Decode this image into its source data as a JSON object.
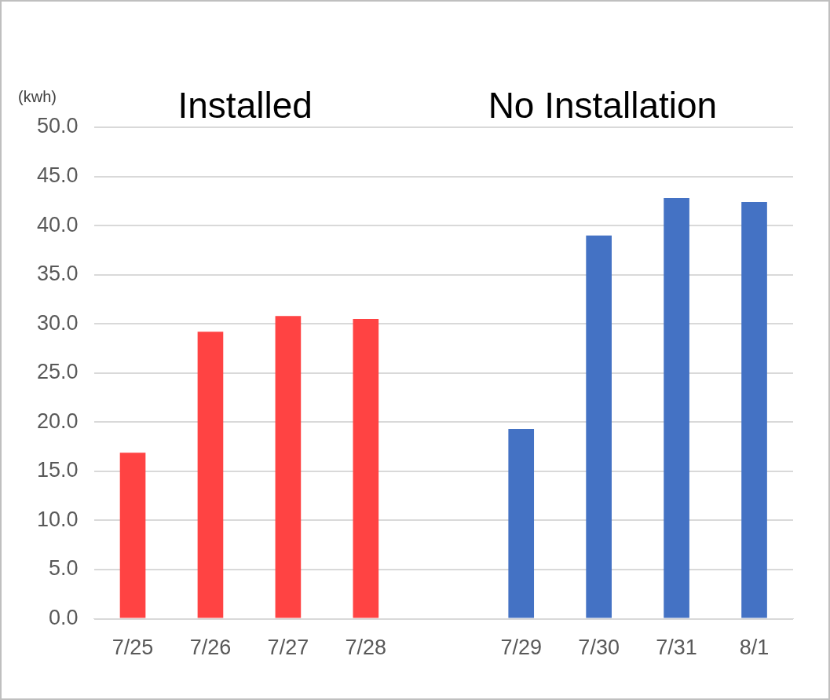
{
  "chart_data": {
    "type": "bar",
    "ylabel": "(kwh)",
    "categories": [
      "7/25",
      "7/26",
      "7/27",
      "7/28",
      null,
      "7/29",
      "7/30",
      "7/31",
      "8/1"
    ],
    "values": [
      16.9,
      29.2,
      30.8,
      30.5,
      null,
      19.3,
      39.0,
      42.8,
      42.4
    ],
    "colors": [
      "#ff4343",
      "#ff4343",
      "#ff4343",
      "#ff4343",
      "#ff4343",
      "#4472c4",
      "#4472c4",
      "#4472c4",
      "#4472c4"
    ],
    "annotations": [
      "Installed",
      "No Installation"
    ],
    "ylim": [
      0,
      50
    ],
    "yticks": [
      {
        "value": 0,
        "label": "0.0"
      },
      {
        "value": 5,
        "label": "5.0"
      },
      {
        "value": 10,
        "label": "10.0"
      },
      {
        "value": 15,
        "label": "15.0"
      },
      {
        "value": 20,
        "label": "20.0"
      },
      {
        "value": 25,
        "label": "25.0"
      },
      {
        "value": 30,
        "label": "30.0"
      },
      {
        "value": 35,
        "label": "35.0"
      },
      {
        "value": 40,
        "label": "40.0"
      },
      {
        "value": 45,
        "label": "45.0"
      },
      {
        "value": 50,
        "label": "50.0"
      }
    ],
    "grid": "y",
    "legend": false
  }
}
